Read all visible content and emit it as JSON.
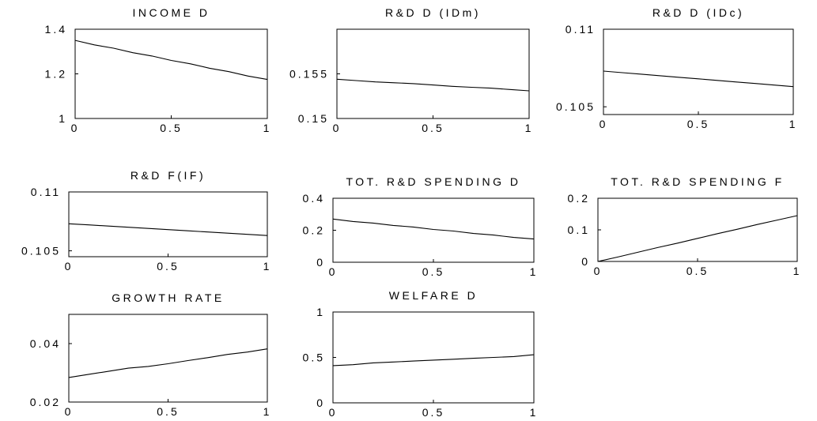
{
  "chart_data": [
    {
      "type": "line",
      "title": "INCOME D",
      "x": [
        0,
        0.1,
        0.2,
        0.3,
        0.4,
        0.5,
        0.6,
        0.7,
        0.8,
        0.9,
        1.0
      ],
      "series": [
        {
          "values": [
            1.35,
            1.33,
            1.315,
            1.295,
            1.28,
            1.26,
            1.245,
            1.225,
            1.21,
            1.19,
            1.175
          ]
        }
      ],
      "xlim": [
        0,
        1
      ],
      "ylim": [
        1,
        1.4
      ],
      "xticks": [
        0,
        0.5,
        1
      ],
      "xtick_labels": [
        "0",
        "0.5",
        "1"
      ],
      "yticks": [
        1,
        1.2,
        1.4
      ],
      "ytick_labels": [
        "1",
        "1.2",
        "1.4"
      ]
    },
    {
      "type": "line",
      "title": "R&D D (IDm)",
      "x": [
        0,
        0.1,
        0.2,
        0.3,
        0.4,
        0.5,
        0.6,
        0.7,
        0.8,
        0.9,
        1.0
      ],
      "series": [
        {
          "values": [
            0.1544,
            0.15425,
            0.1541,
            0.154,
            0.1539,
            0.15375,
            0.1536,
            0.1535,
            0.1534,
            0.15325,
            0.1531
          ]
        }
      ],
      "xlim": [
        0,
        1
      ],
      "ylim": [
        0.15,
        0.16
      ],
      "xticks": [
        0,
        0.5,
        1
      ],
      "xtick_labels": [
        "0",
        "0.5",
        "1"
      ],
      "yticks": [
        0.15,
        0.155
      ],
      "ytick_labels": [
        "0.15",
        "0.155"
      ]
    },
    {
      "type": "line",
      "title": "R&D D (IDc)",
      "x": [
        0,
        0.1,
        0.2,
        0.3,
        0.4,
        0.5,
        0.6,
        0.7,
        0.8,
        0.9,
        1.0
      ],
      "series": [
        {
          "values": [
            0.1073,
            0.1072,
            0.1071,
            0.107,
            0.1069,
            0.1068,
            0.1067,
            0.1066,
            0.1065,
            0.1064,
            0.1063
          ]
        }
      ],
      "xlim": [
        0,
        1
      ],
      "ylim": [
        0.1045,
        0.11
      ],
      "xticks": [
        0,
        0.5,
        1
      ],
      "xtick_labels": [
        "0",
        "0.5",
        "1"
      ],
      "yticks": [
        0.105,
        0.11
      ],
      "ytick_labels": [
        "0.105",
        "0.11"
      ]
    },
    {
      "type": "line",
      "title": "R&D F(IF)",
      "x": [
        0,
        0.1,
        0.2,
        0.3,
        0.4,
        0.5,
        0.6,
        0.7,
        0.8,
        0.9,
        1.0
      ],
      "series": [
        {
          "values": [
            0.1073,
            0.1072,
            0.1071,
            0.107,
            0.1069,
            0.1068,
            0.1067,
            0.1066,
            0.1065,
            0.1064,
            0.1063
          ]
        }
      ],
      "xlim": [
        0,
        1
      ],
      "ylim": [
        0.1045,
        0.11
      ],
      "xticks": [
        0,
        0.5,
        1
      ],
      "xtick_labels": [
        "0",
        "0.5",
        "1"
      ],
      "yticks": [
        0.105,
        0.11
      ],
      "ytick_labels": [
        "0.105",
        "0.11"
      ]
    },
    {
      "type": "line",
      "title": "TOT. R&D SPENDING D",
      "x": [
        0,
        0.1,
        0.2,
        0.3,
        0.4,
        0.5,
        0.6,
        0.7,
        0.8,
        0.9,
        1.0
      ],
      "series": [
        {
          "values": [
            0.27,
            0.255,
            0.245,
            0.23,
            0.22,
            0.205,
            0.195,
            0.18,
            0.17,
            0.155,
            0.145
          ]
        }
      ],
      "xlim": [
        0,
        1
      ],
      "ylim": [
        0,
        0.4
      ],
      "xticks": [
        0,
        0.5,
        1
      ],
      "xtick_labels": [
        "0",
        "0.5",
        "1"
      ],
      "yticks": [
        0,
        0.2,
        0.4
      ],
      "ytick_labels": [
        "0",
        "0.2",
        "0.4"
      ]
    },
    {
      "type": "line",
      "title": "TOT. R&D SPENDING F",
      "x": [
        0,
        0.1,
        0.2,
        0.3,
        0.4,
        0.5,
        0.6,
        0.7,
        0.8,
        0.9,
        1.0
      ],
      "series": [
        {
          "values": [
            0,
            0.014,
            0.029,
            0.044,
            0.058,
            0.073,
            0.088,
            0.102,
            0.117,
            0.131,
            0.145
          ]
        }
      ],
      "xlim": [
        0,
        1
      ],
      "ylim": [
        0,
        0.2
      ],
      "xticks": [
        0,
        0.5,
        1
      ],
      "xtick_labels": [
        "0",
        "0.5",
        "1"
      ],
      "yticks": [
        0,
        0.1,
        0.2
      ],
      "ytick_labels": [
        "0",
        "0.1",
        "0.2"
      ]
    },
    {
      "type": "line",
      "title": "GROWTH RATE",
      "x": [
        0,
        0.1,
        0.2,
        0.3,
        0.4,
        0.5,
        0.6,
        0.7,
        0.8,
        0.9,
        1.0
      ],
      "series": [
        {
          "values": [
            0.0284,
            0.0295,
            0.0305,
            0.0316,
            0.0322,
            0.0331,
            0.0342,
            0.0352,
            0.0363,
            0.0371,
            0.0382
          ]
        }
      ],
      "xlim": [
        0,
        1
      ],
      "ylim": [
        0.02,
        0.05
      ],
      "xticks": [
        0,
        0.5,
        1
      ],
      "xtick_labels": [
        "0",
        "0.5",
        "1"
      ],
      "yticks": [
        0.02,
        0.04
      ],
      "ytick_labels": [
        "0.02",
        "0.04"
      ]
    },
    {
      "type": "line",
      "title": "WELFARE D",
      "x": [
        0,
        0.1,
        0.2,
        0.3,
        0.4,
        0.5,
        0.6,
        0.7,
        0.8,
        0.9,
        1.0
      ],
      "series": [
        {
          "values": [
            0.41,
            0.42,
            0.44,
            0.45,
            0.46,
            0.47,
            0.48,
            0.49,
            0.5,
            0.51,
            0.53
          ]
        }
      ],
      "xlim": [
        0,
        1
      ],
      "ylim": [
        0,
        1
      ],
      "xticks": [
        0,
        0.5,
        1
      ],
      "xtick_labels": [
        "0",
        "0.5",
        "1"
      ],
      "yticks": [
        0,
        0.5,
        1
      ],
      "ytick_labels": [
        "0",
        "0.5",
        "1"
      ]
    }
  ]
}
